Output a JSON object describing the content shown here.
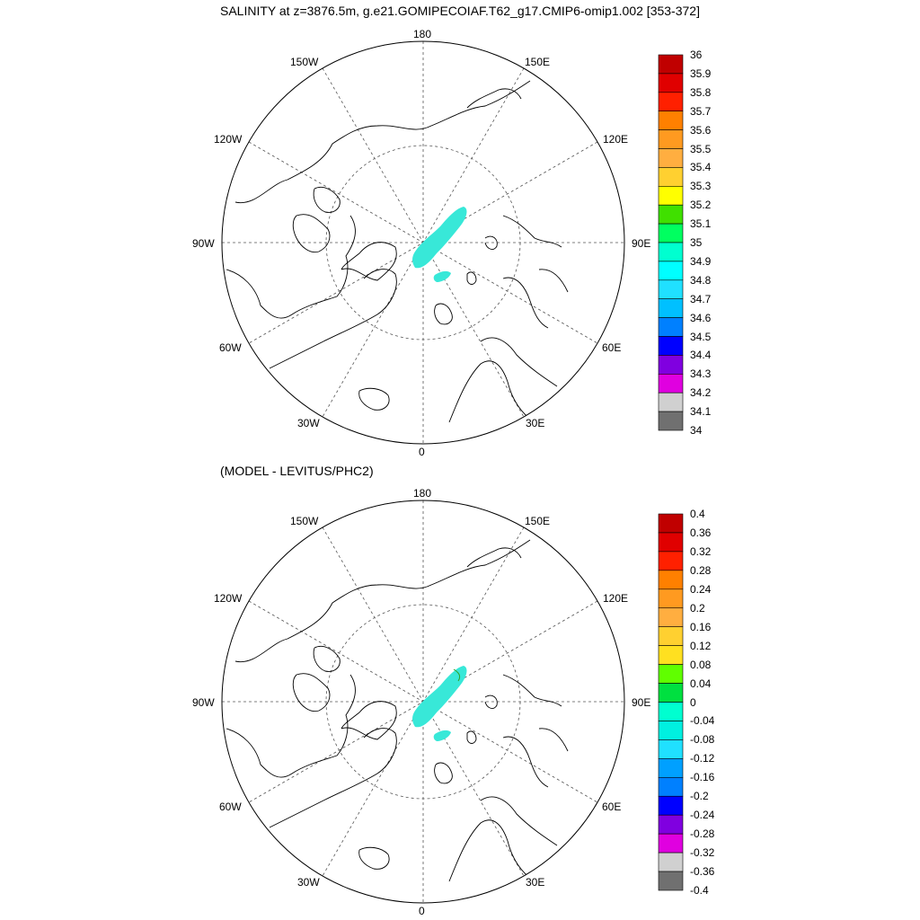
{
  "title": "SALINITY at z=3876.5m, g.e21.GOMIPECOIAF.T62_g17.CMIP6-omip1.002 [353-372]",
  "subtitle": "(MODEL - LEVITUS/PHC2)",
  "longitude_labels": {
    "top": "180",
    "bottom": "0",
    "left": "90W",
    "right": "90E",
    "upper_left_1": "150W",
    "upper_left_2": "120W",
    "lower_left_1": "60W",
    "lower_left_2": "30W",
    "upper_right_1": "150E",
    "upper_right_2": "120E",
    "lower_right_1": "60E",
    "lower_right_2": "30E"
  },
  "colorbar_top": {
    "labels": [
      "36",
      "35.9",
      "35.8",
      "35.7",
      "35.6",
      "35.5",
      "35.4",
      "35.3",
      "35.2",
      "35.1",
      "35",
      "34.9",
      "34.8",
      "34.7",
      "34.6",
      "34.5",
      "34.4",
      "34.3",
      "34.2",
      "34.1",
      "34"
    ],
    "colors": [
      "#c00000",
      "#e00000",
      "#ff2000",
      "#ff8000",
      "#ff9a20",
      "#ffae40",
      "#ffd030",
      "#ffff00",
      "#40e000",
      "#00ff60",
      "#00ffd0",
      "#00ffff",
      "#20e0ff",
      "#00c0ff",
      "#0080ff",
      "#0000ff",
      "#8000e0",
      "#e000e0",
      "#d0d0d0",
      "#707070"
    ]
  },
  "colorbar_bottom": {
    "labels": [
      "0.4",
      "0.36",
      "0.32",
      "0.28",
      "0.24",
      "0.2",
      "0.16",
      "0.12",
      "0.08",
      "0.04",
      "0",
      "-0.04",
      "-0.08",
      "-0.12",
      "-0.16",
      "-0.2",
      "-0.24",
      "-0.28",
      "-0.32",
      "-0.36",
      "-0.4"
    ],
    "colors": [
      "#c00000",
      "#e00000",
      "#ff2000",
      "#ff8000",
      "#ff9a20",
      "#ffae40",
      "#ffd030",
      "#ffe020",
      "#60ff00",
      "#00e040",
      "#00ffd0",
      "#00f0e0",
      "#20e0ff",
      "#00a0ff",
      "#0080ff",
      "#0000ff",
      "#8000e0",
      "#e000e0",
      "#d0d0d0",
      "#707070"
    ]
  },
  "field_color": "#38e8d8",
  "land_line_color": "#000000"
}
